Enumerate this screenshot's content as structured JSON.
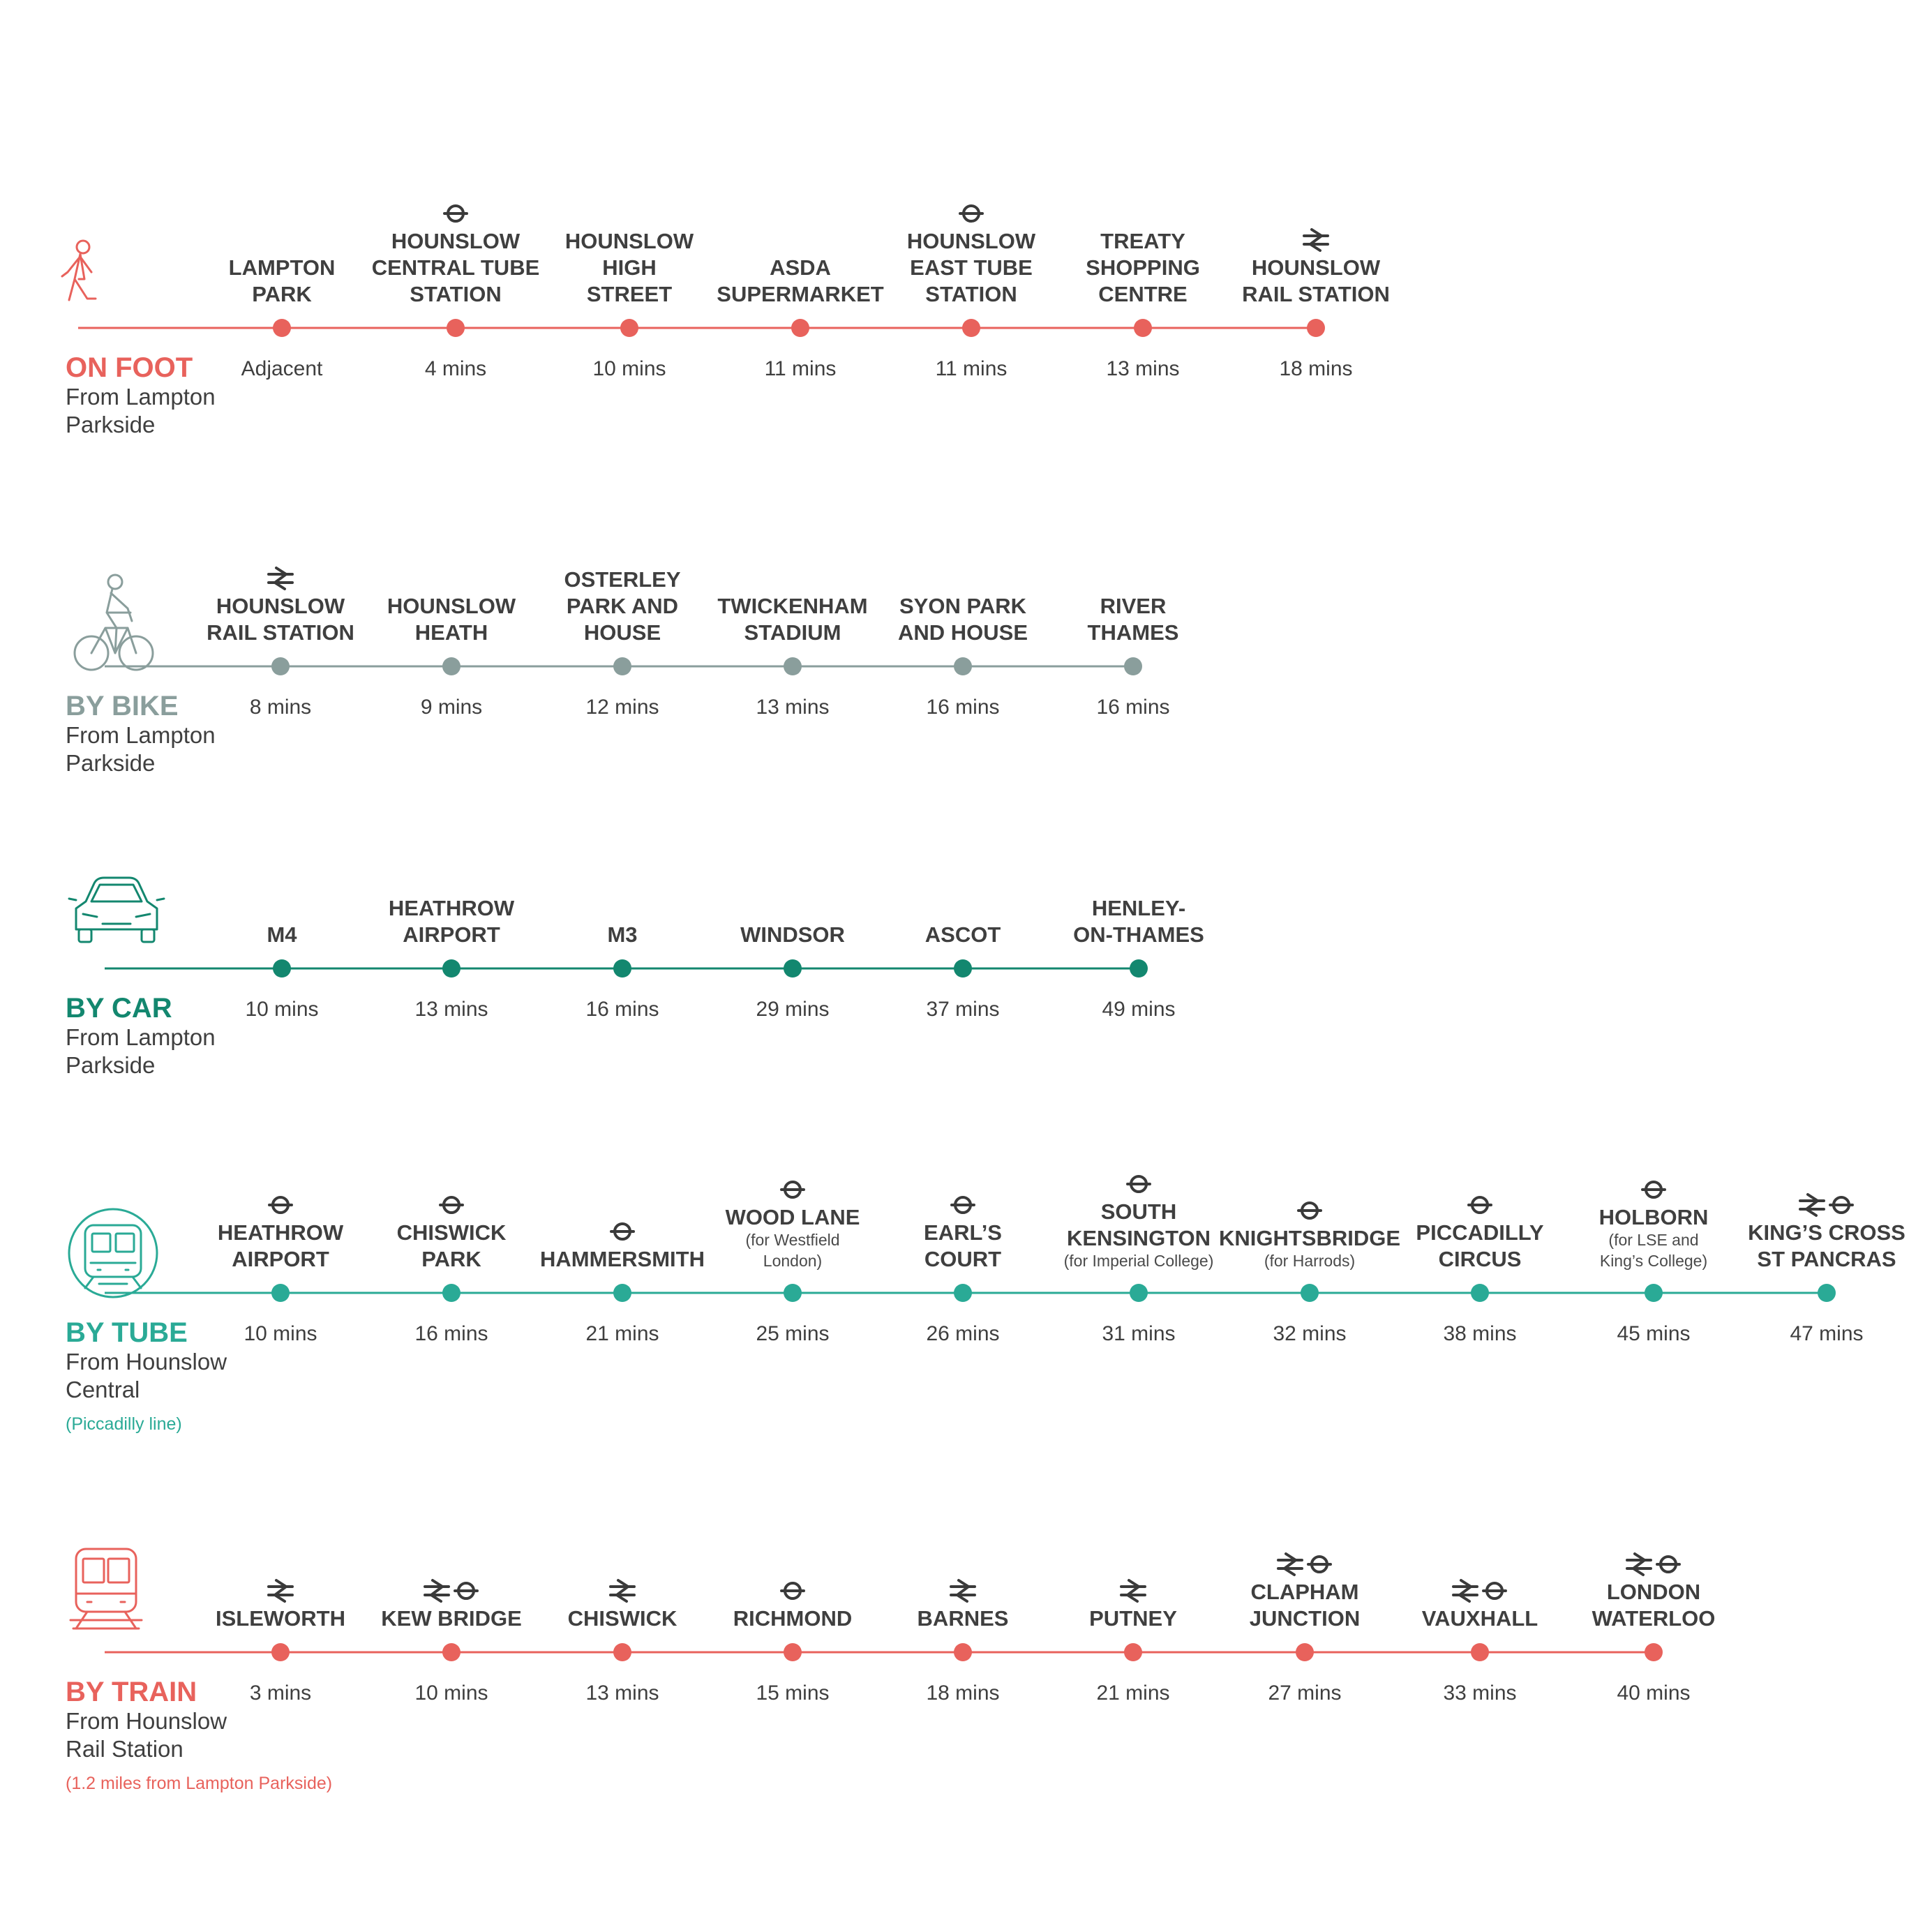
{
  "colors": {
    "foot": "#e8625c",
    "bike": "#8a9e9c",
    "car": "#13876f",
    "tube": "#2aaa96",
    "train": "#e8625c",
    "text": "#3f3f3f"
  },
  "sections": [
    {
      "id": "foot",
      "mode": "ON FOOT",
      "from": [
        "From Lampton",
        "Parkside"
      ],
      "note": "",
      "icon": "walking-person-icon",
      "stops": [
        {
          "name": [
            "LAMPTON",
            "PARK"
          ],
          "time": "Adjacent",
          "icons": []
        },
        {
          "name": [
            "HOUNSLOW",
            "CENTRAL TUBE",
            "STATION"
          ],
          "time": "4 mins",
          "icons": [
            "underground"
          ]
        },
        {
          "name": [
            "HOUNSLOW",
            "HIGH",
            "STREET"
          ],
          "time": "10 mins",
          "icons": []
        },
        {
          "name": [
            "ASDA",
            "SUPERMARKET"
          ],
          "time": "11 mins",
          "icons": []
        },
        {
          "name": [
            "HOUNSLOW",
            "EAST TUBE",
            "STATION"
          ],
          "time": "11 mins",
          "icons": [
            "underground"
          ]
        },
        {
          "name": [
            "TREATY",
            "SHOPPING",
            "CENTRE"
          ],
          "time": "13 mins",
          "icons": []
        },
        {
          "name": [
            "HOUNSLOW",
            "RAIL STATION"
          ],
          "time": "18 mins",
          "icons": [
            "rail"
          ]
        }
      ]
    },
    {
      "id": "bike",
      "mode": "BY BIKE",
      "from": [
        "From Lampton",
        "Parkside"
      ],
      "note": "",
      "icon": "cyclist-icon",
      "stops": [
        {
          "name": [
            "HOUNSLOW",
            "RAIL STATION"
          ],
          "time": "8 mins",
          "icons": [
            "rail"
          ]
        },
        {
          "name": [
            "HOUNSLOW",
            "HEATH"
          ],
          "time": "9 mins",
          "icons": []
        },
        {
          "name": [
            "OSTERLEY",
            "PARK AND",
            "HOUSE"
          ],
          "time": "12 mins",
          "icons": []
        },
        {
          "name": [
            "TWICKENHAM",
            "STADIUM"
          ],
          "time": "13 mins",
          "icons": []
        },
        {
          "name": [
            "SYON PARK",
            "AND HOUSE"
          ],
          "time": "16 mins",
          "icons": []
        },
        {
          "name": [
            "RIVER",
            "THAMES"
          ],
          "time": "16 mins",
          "icons": []
        }
      ]
    },
    {
      "id": "car",
      "mode": "BY CAR",
      "from": [
        "From Lampton",
        "Parkside"
      ],
      "note": "",
      "icon": "car-icon",
      "stops": [
        {
          "name": [
            "M4"
          ],
          "time": "10 mins",
          "icons": []
        },
        {
          "name": [
            "HEATHROW",
            "AIRPORT"
          ],
          "time": "13 mins",
          "icons": []
        },
        {
          "name": [
            "M3"
          ],
          "time": "16 mins",
          "icons": []
        },
        {
          "name": [
            "WINDSOR"
          ],
          "time": "29 mins",
          "icons": []
        },
        {
          "name": [
            "ASCOT"
          ],
          "time": "37 mins",
          "icons": []
        },
        {
          "name": [
            "HENLEY-",
            "ON-THAMES"
          ],
          "time": "49 mins",
          "icons": []
        }
      ]
    },
    {
      "id": "tube",
      "mode": "BY TUBE",
      "from": [
        "From Hounslow",
        "Central"
      ],
      "note": "(Piccadilly line)",
      "icon": "tube-train-icon",
      "stops": [
        {
          "name": [
            "HEATHROW",
            "AIRPORT"
          ],
          "time": "10 mins",
          "icons": [
            "underground"
          ],
          "subnote": []
        },
        {
          "name": [
            "CHISWICK",
            "PARK"
          ],
          "time": "16 mins",
          "icons": [
            "underground"
          ],
          "subnote": []
        },
        {
          "name": [
            "HAMMERSMITH"
          ],
          "time": "21 mins",
          "icons": [
            "underground"
          ],
          "subnote": []
        },
        {
          "name": [
            "WOOD LANE"
          ],
          "time": "25 mins",
          "icons": [
            "underground"
          ],
          "subnote": [
            "(for Westfield",
            "London)"
          ]
        },
        {
          "name": [
            "EARL’S",
            "COURT"
          ],
          "time": "26 mins",
          "icons": [
            "underground"
          ],
          "subnote": []
        },
        {
          "name": [
            "SOUTH",
            "KENSINGTON"
          ],
          "time": "31 mins",
          "icons": [
            "underground"
          ],
          "subnote": [
            "(for Imperial College)"
          ]
        },
        {
          "name": [
            "KNIGHTSBRIDGE"
          ],
          "time": "32 mins",
          "icons": [
            "underground"
          ],
          "subnote": [
            "(for Harrods)"
          ]
        },
        {
          "name": [
            "PICCADILLY",
            "CIRCUS"
          ],
          "time": "38 mins",
          "icons": [
            "underground"
          ],
          "subnote": []
        },
        {
          "name": [
            "HOLBORN"
          ],
          "time": "45 mins",
          "icons": [
            "underground"
          ],
          "subnote": [
            "(for LSE and",
            "King’s College)"
          ]
        },
        {
          "name": [
            "KING’S CROSS",
            "ST PANCRAS"
          ],
          "time": "47 mins",
          "icons": [
            "rail",
            "underground"
          ],
          "subnote": []
        }
      ]
    },
    {
      "id": "train",
      "mode": "BY TRAIN",
      "from": [
        "From Hounslow",
        "Rail Station"
      ],
      "note": "(1.2 miles from Lampton Parkside)",
      "icon": "train-icon",
      "stops": [
        {
          "name": [
            "ISLEWORTH"
          ],
          "time": "3 mins",
          "icons": [
            "rail"
          ]
        },
        {
          "name": [
            "KEW BRIDGE"
          ],
          "time": "10 mins",
          "icons": [
            "rail",
            "underground"
          ]
        },
        {
          "name": [
            "CHISWICK"
          ],
          "time": "13 mins",
          "icons": [
            "rail"
          ]
        },
        {
          "name": [
            "RICHMOND"
          ],
          "time": "15 mins",
          "icons": [
            "underground"
          ]
        },
        {
          "name": [
            "BARNES"
          ],
          "time": "18 mins",
          "icons": [
            "rail"
          ]
        },
        {
          "name": [
            "PUTNEY"
          ],
          "time": "21 mins",
          "icons": [
            "rail"
          ]
        },
        {
          "name": [
            "CLAPHAM",
            "JUNCTION"
          ],
          "time": "27 mins",
          "icons": [
            "rail",
            "underground"
          ]
        },
        {
          "name": [
            "VAUXHALL"
          ],
          "time": "33 mins",
          "icons": [
            "rail",
            "underground"
          ]
        },
        {
          "name": [
            "LONDON",
            "WATERLOO"
          ],
          "time": "40 mins",
          "icons": [
            "rail",
            "underground"
          ]
        }
      ]
    }
  ]
}
